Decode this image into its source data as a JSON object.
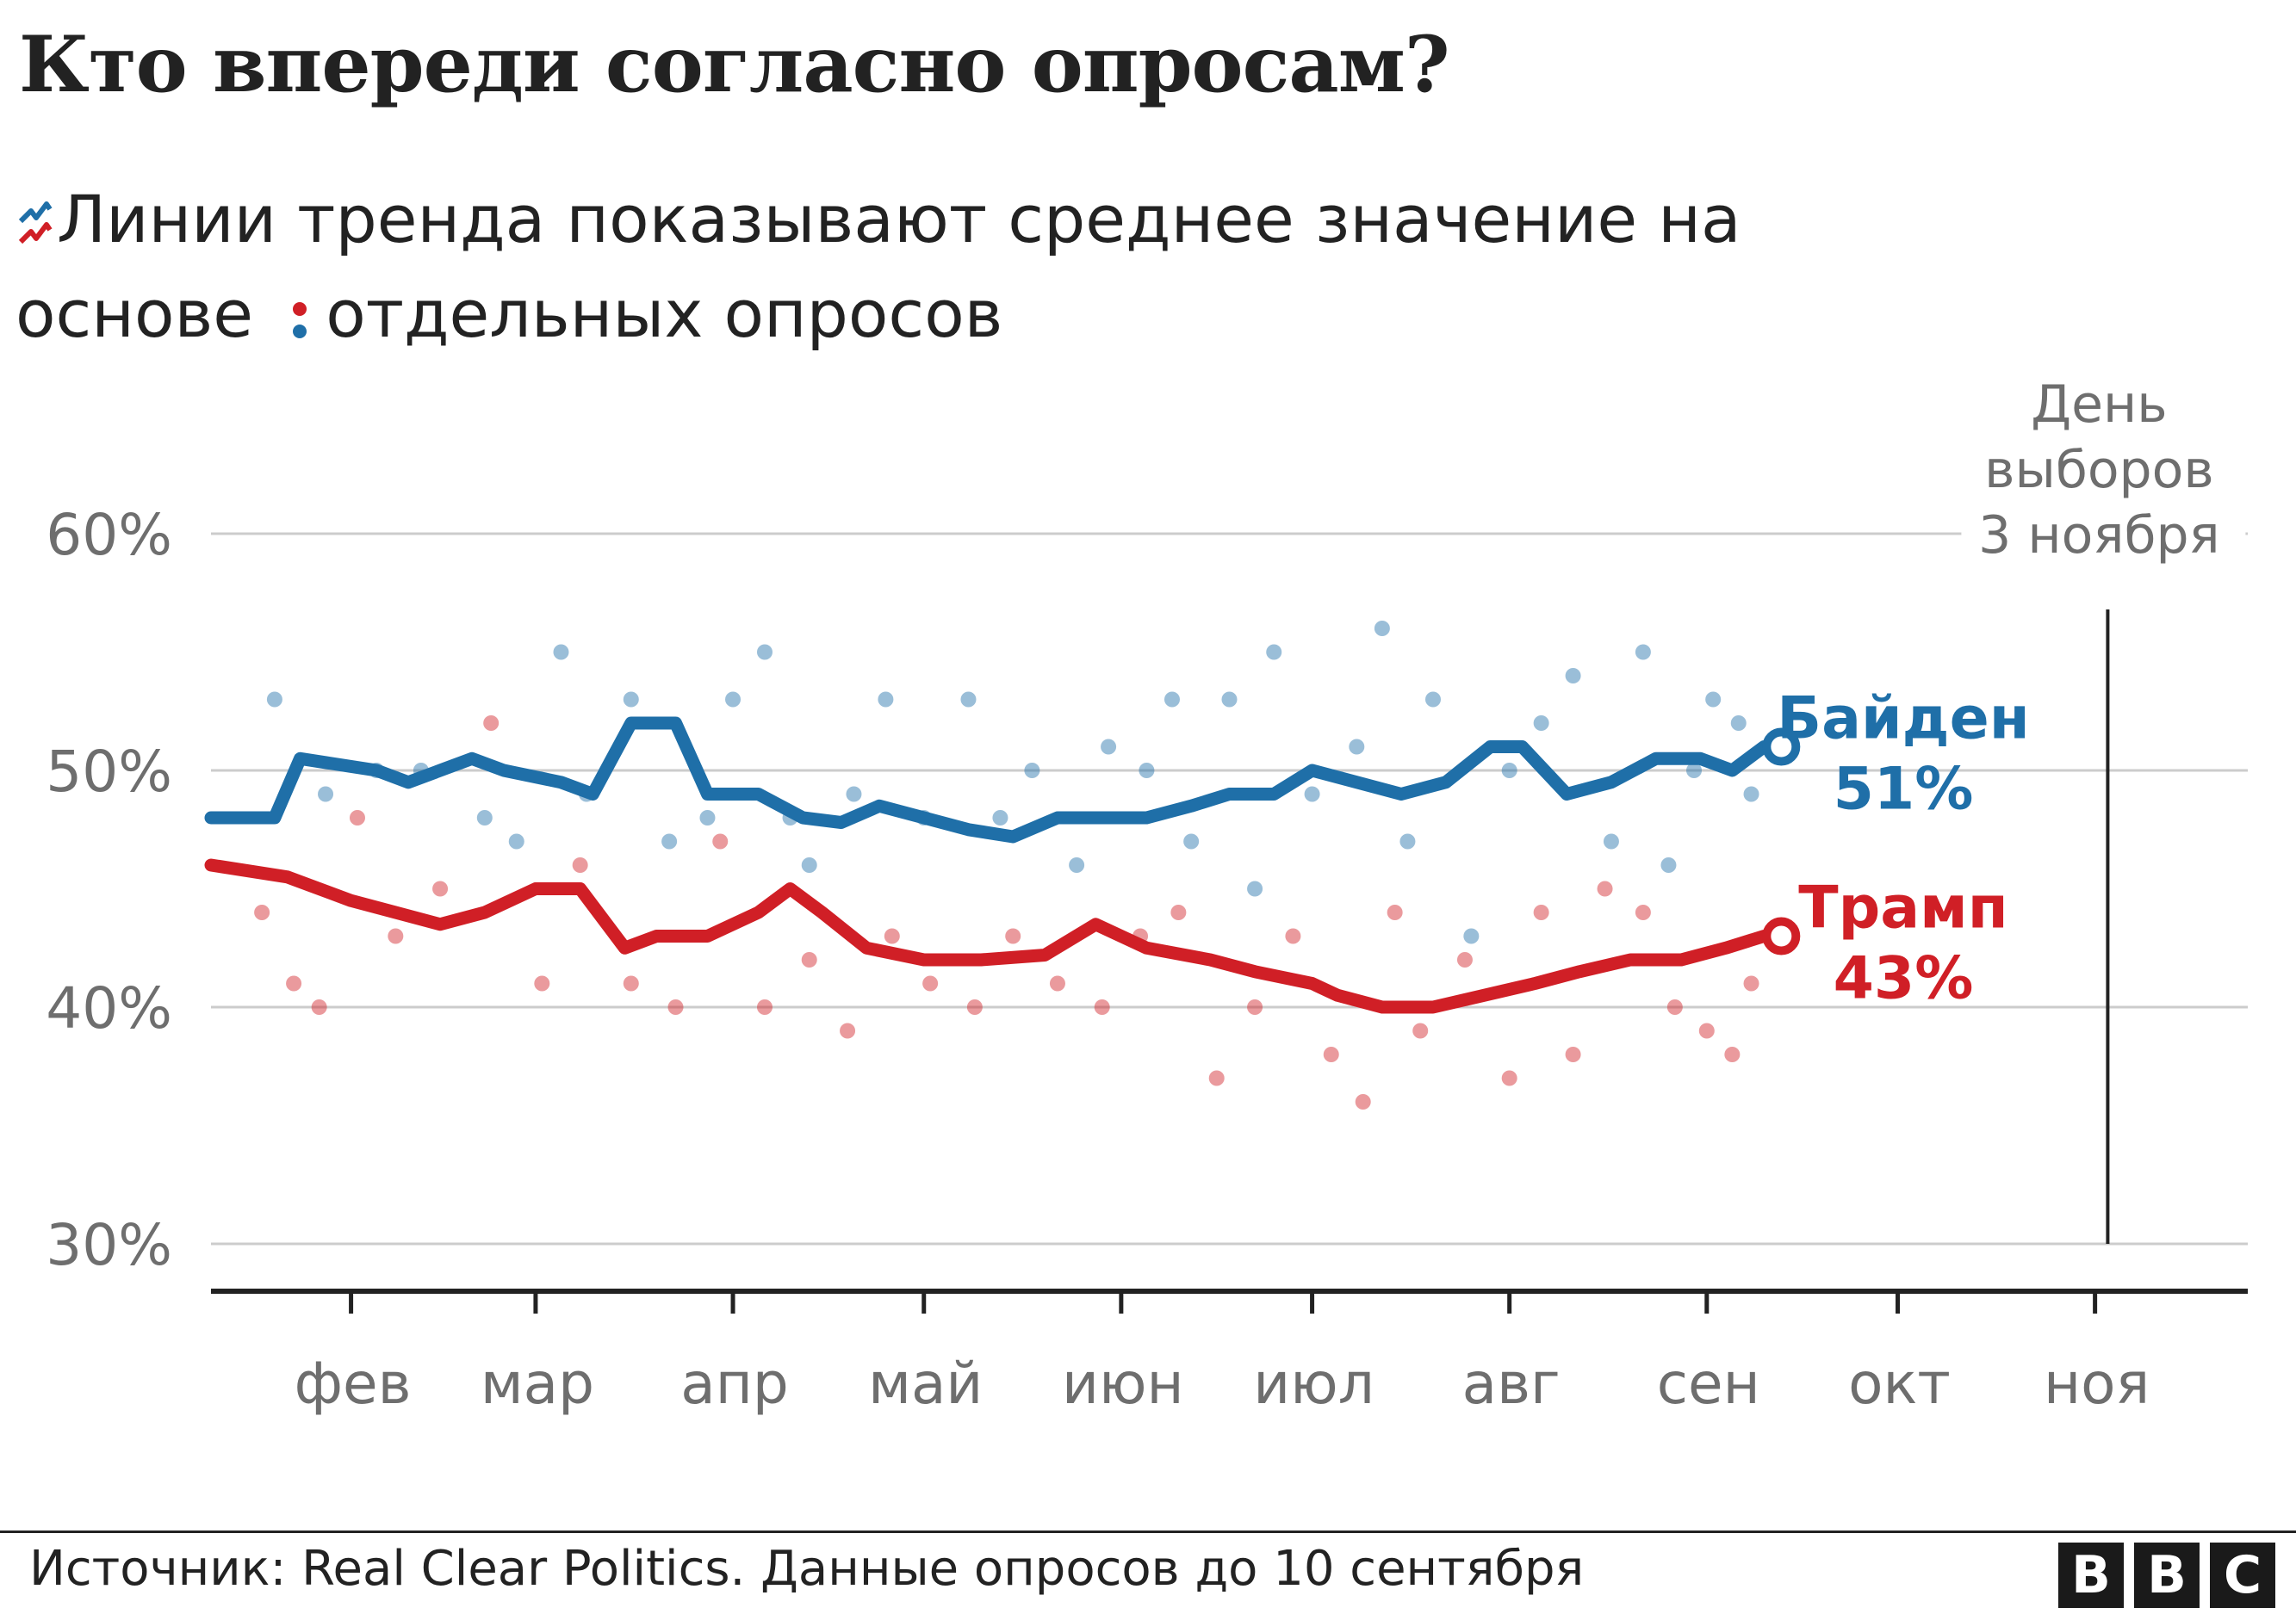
{
  "title": "Кто впереди согласно опросам?",
  "subtitle": {
    "part1": "Линии тренда показывают среднее значение на основе",
    "part2": "отдельных опросов",
    "trend_icon": "trend-lines-icon",
    "dots_icon": "poll-dots-icon"
  },
  "footer": {
    "source": "Источник: Real Clear Politics. Данные опросов до 10 сентября",
    "logo": [
      "B",
      "B",
      "C"
    ]
  },
  "colors": {
    "biden": "#1f6fa8",
    "trump": "#d01f26",
    "grid": "#cccccc",
    "axis": "#222222",
    "muted_text": "#6e6e6e"
  },
  "chart_data": {
    "type": "line",
    "x_axis": {
      "ticks": [
        "фев",
        "мар",
        "апр",
        "май",
        "июн",
        "июл",
        "авг",
        "сен",
        "окт",
        "ноя"
      ],
      "range": [
        "2020-01-10",
        "2020-11-25"
      ]
    },
    "y_axis": {
      "ticks": [
        "30%",
        "40%",
        "50%",
        "60%"
      ],
      "range": [
        30,
        60
      ]
    },
    "grid": true,
    "annotation": {
      "label": [
        "День",
        "выборов",
        "3 ноября"
      ],
      "date": "2020-11-03"
    },
    "series": [
      {
        "name": "Байден",
        "end_value": "51%",
        "x": [
          "2020-01-10",
          "2020-01-20",
          "2020-01-24",
          "2020-02-05",
          "2020-02-10",
          "2020-02-20",
          "2020-02-25",
          "2020-03-05",
          "2020-03-10",
          "2020-03-16",
          "2020-03-23",
          "2020-03-28",
          "2020-04-05",
          "2020-04-12",
          "2020-04-18",
          "2020-04-24",
          "2020-05-01",
          "2020-05-08",
          "2020-05-15",
          "2020-05-22",
          "2020-05-27",
          "2020-06-05",
          "2020-06-12",
          "2020-06-18",
          "2020-06-25",
          "2020-07-01",
          "2020-07-08",
          "2020-07-15",
          "2020-07-22",
          "2020-07-29",
          "2020-08-03",
          "2020-08-10",
          "2020-08-17",
          "2020-08-24",
          "2020-08-31",
          "2020-09-05",
          "2020-09-10"
        ],
        "values": [
          48,
          48,
          50.5,
          50,
          49.5,
          50.5,
          50,
          49.5,
          49,
          52,
          52,
          49,
          49,
          48,
          47.8,
          48.5,
          48,
          47.5,
          47.2,
          48,
          48,
          48,
          48.5,
          49,
          49,
          50,
          49.5,
          49,
          49.5,
          51,
          51,
          49,
          49.5,
          50.5,
          50.5,
          50,
          51
        ]
      },
      {
        "name": "Трамп",
        "end_value": "43%",
        "x": [
          "2020-01-10",
          "2020-01-22",
          "2020-02-01",
          "2020-02-08",
          "2020-02-15",
          "2020-02-22",
          "2020-03-01",
          "2020-03-08",
          "2020-03-15",
          "2020-03-20",
          "2020-03-28",
          "2020-04-05",
          "2020-04-10",
          "2020-04-15",
          "2020-04-22",
          "2020-05-01",
          "2020-05-10",
          "2020-05-20",
          "2020-05-28",
          "2020-06-05",
          "2020-06-15",
          "2020-06-22",
          "2020-07-01",
          "2020-07-05",
          "2020-07-12",
          "2020-07-20",
          "2020-07-28",
          "2020-08-05",
          "2020-08-12",
          "2020-08-20",
          "2020-08-28",
          "2020-09-04",
          "2020-09-10"
        ],
        "values": [
          46,
          45.5,
          44.5,
          44,
          43.5,
          44,
          45,
          45,
          42.5,
          43,
          43,
          44,
          45,
          44,
          42.5,
          42,
          42,
          42.2,
          43.5,
          42.5,
          42,
          41.5,
          41,
          40.5,
          40,
          40,
          40.5,
          41,
          41.5,
          42,
          42,
          42.5,
          43
        ]
      }
    ],
    "points_note": "",
    "polls": {
      "Байден": [
        [
          "2020-01-20",
          53
        ],
        [
          "2020-01-28",
          49
        ],
        [
          "2020-02-05",
          50
        ],
        [
          "2020-02-12",
          50
        ],
        [
          "2020-02-22",
          48
        ],
        [
          "2020-02-27",
          47
        ],
        [
          "2020-03-05",
          55
        ],
        [
          "2020-03-09",
          49
        ],
        [
          "2020-03-16",
          53
        ],
        [
          "2020-03-22",
          47
        ],
        [
          "2020-03-28",
          48
        ],
        [
          "2020-04-01",
          53
        ],
        [
          "2020-04-06",
          55
        ],
        [
          "2020-04-10",
          48
        ],
        [
          "2020-04-13",
          46
        ],
        [
          "2020-04-20",
          49
        ],
        [
          "2020-04-25",
          53
        ],
        [
          "2020-05-01",
          48
        ],
        [
          "2020-05-08",
          53
        ],
        [
          "2020-05-13",
          48
        ],
        [
          "2020-05-18",
          50
        ],
        [
          "2020-05-25",
          46
        ],
        [
          "2020-05-30",
          51
        ],
        [
          "2020-06-05",
          50
        ],
        [
          "2020-06-09",
          53
        ],
        [
          "2020-06-12",
          47
        ],
        [
          "2020-06-18",
          53
        ],
        [
          "2020-06-22",
          45
        ],
        [
          "2020-06-25",
          55
        ],
        [
          "2020-07-01",
          49
        ],
        [
          "2020-07-08",
          51
        ],
        [
          "2020-07-12",
          56
        ],
        [
          "2020-07-16",
          47
        ],
        [
          "2020-07-20",
          53
        ],
        [
          "2020-07-26",
          43
        ],
        [
          "2020-08-01",
          50
        ],
        [
          "2020-08-06",
          52
        ],
        [
          "2020-08-11",
          54
        ],
        [
          "2020-08-17",
          47
        ],
        [
          "2020-08-22",
          55
        ],
        [
          "2020-08-26",
          46
        ],
        [
          "2020-08-30",
          50
        ],
        [
          "2020-09-02",
          53
        ],
        [
          "2020-09-06",
          52
        ],
        [
          "2020-09-08",
          49
        ]
      ],
      "Трамп": [
        [
          "2020-01-18",
          44
        ],
        [
          "2020-01-23",
          41
        ],
        [
          "2020-01-27",
          40
        ],
        [
          "2020-02-02",
          48
        ],
        [
          "2020-02-08",
          43
        ],
        [
          "2020-02-15",
          45
        ],
        [
          "2020-02-23",
          52
        ],
        [
          "2020-03-02",
          41
        ],
        [
          "2020-03-08",
          46
        ],
        [
          "2020-03-16",
          41
        ],
        [
          "2020-03-23",
          40
        ],
        [
          "2020-03-30",
          47
        ],
        [
          "2020-04-06",
          40
        ],
        [
          "2020-04-13",
          42
        ],
        [
          "2020-04-19",
          39
        ],
        [
          "2020-04-26",
          43
        ],
        [
          "2020-05-02",
          41
        ],
        [
          "2020-05-09",
          40
        ],
        [
          "2020-05-15",
          43
        ],
        [
          "2020-05-22",
          41
        ],
        [
          "2020-05-29",
          40
        ],
        [
          "2020-06-04",
          43
        ],
        [
          "2020-06-10",
          44
        ],
        [
          "2020-06-16",
          37
        ],
        [
          "2020-06-22",
          40
        ],
        [
          "2020-06-28",
          43
        ],
        [
          "2020-07-04",
          38
        ],
        [
          "2020-07-09",
          36
        ],
        [
          "2020-07-14",
          44
        ],
        [
          "2020-07-18",
          39
        ],
        [
          "2020-07-25",
          42
        ],
        [
          "2020-08-01",
          37
        ],
        [
          "2020-08-06",
          44
        ],
        [
          "2020-08-11",
          38
        ],
        [
          "2020-08-16",
          45
        ],
        [
          "2020-08-22",
          44
        ],
        [
          "2020-08-27",
          40
        ],
        [
          "2020-09-01",
          39
        ],
        [
          "2020-09-05",
          38
        ],
        [
          "2020-09-08",
          41
        ]
      ]
    }
  }
}
